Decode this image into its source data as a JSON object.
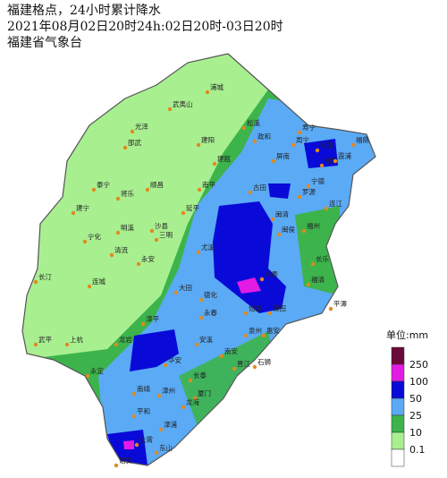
{
  "header": {
    "lines": [
      "福建格点，24小时累计降水",
      "2021年08月02日20时24h:02日20时-03日20时",
      "福建省气象台"
    ]
  },
  "legend": {
    "unit": "单位:mm",
    "levels": [
      {
        "label": "250",
        "color": "#6b0a3a"
      },
      {
        "label": "100",
        "color": "#e21ce2"
      },
      {
        "label": "50",
        "color": "#0a0ad8"
      },
      {
        "label": "25",
        "color": "#5aaaf5"
      },
      {
        "label": "10",
        "color": "#3cb44b"
      },
      {
        "label": "0.1",
        "color": "#a8ef90"
      }
    ],
    "bottom_color": "#ffffff"
  },
  "cities": [
    "光泽",
    "武夷山",
    "浦城",
    "松溪",
    "政和",
    "邵武",
    "建阳",
    "建瓯",
    "寿宁",
    "柘荣",
    "福鼎",
    "周宁",
    "福安",
    "霞浦",
    "屏南",
    "宁德",
    "泰宁",
    "将乐",
    "顺昌",
    "南平",
    "古田",
    "罗源",
    "建宁",
    "明溪",
    "沙县",
    "延平",
    "闽清",
    "连江",
    "福州",
    "宁化",
    "清流",
    "三明",
    "尤溪",
    "永泰",
    "闽侯",
    "长乐",
    "福清",
    "平潭",
    "长汀",
    "连城",
    "永安",
    "大田",
    "德化",
    "仙游",
    "莆田",
    "永春",
    "安溪",
    "南安",
    "泉州",
    "惠安",
    "晋江",
    "石狮",
    "武平",
    "上杭",
    "龙岩",
    "漳平",
    "华安",
    "长泰",
    "厦门",
    "永定",
    "南靖",
    "漳州",
    "平和",
    "龙海",
    "漳浦",
    "云霄",
    "东山",
    "诏安"
  ]
}
